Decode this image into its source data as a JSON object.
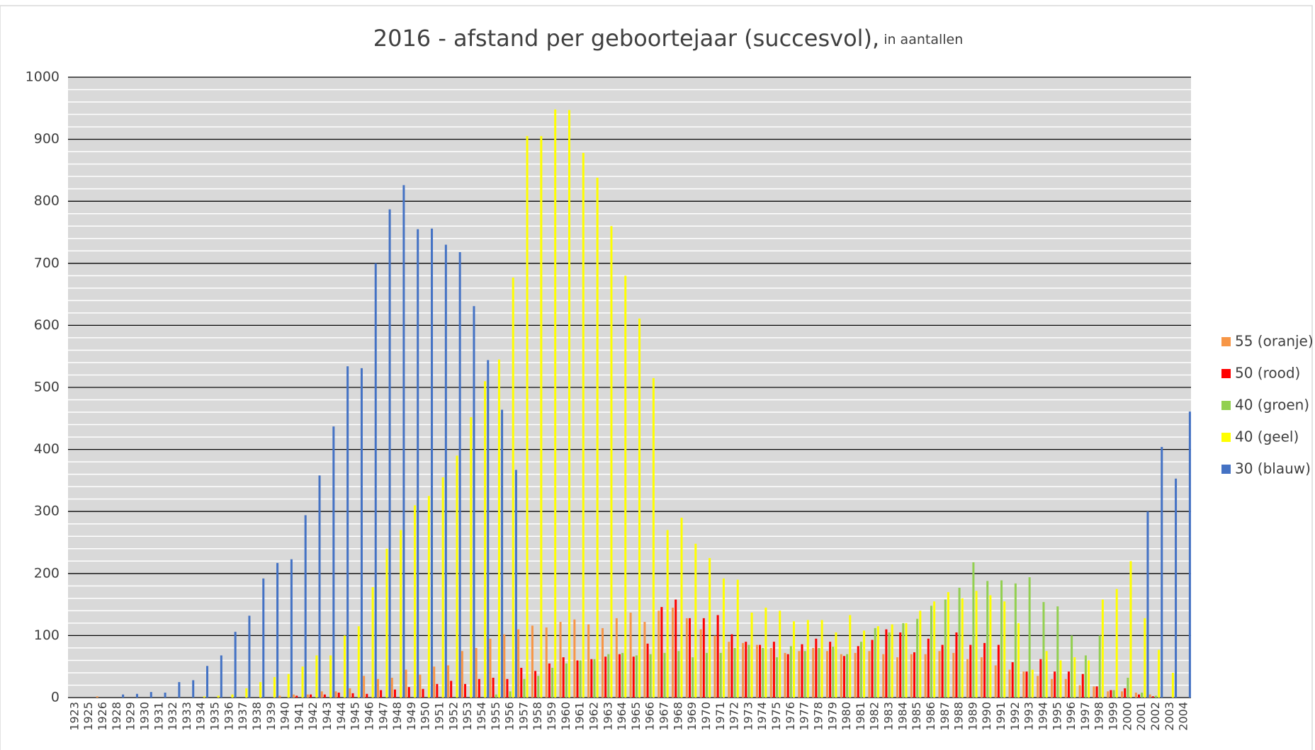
{
  "chart_data": {
    "type": "bar",
    "title": "2016 - afstand per geboortejaar (succesvol),",
    "subtitle": "in aantallen",
    "categories": [
      "1923",
      "1925",
      "1926",
      "1928",
      "1929",
      "1930",
      "1931",
      "1932",
      "1933",
      "1934",
      "1935",
      "1936",
      "1937",
      "1938",
      "1939",
      "1940",
      "1941",
      "1942",
      "1943",
      "1944",
      "1945",
      "1946",
      "1947",
      "1948",
      "1949",
      "1950",
      "1951",
      "1952",
      "1953",
      "1954",
      "1955",
      "1956",
      "1957",
      "1958",
      "1959",
      "1960",
      "1961",
      "1962",
      "1963",
      "1964",
      "1965",
      "1966",
      "1967",
      "1968",
      "1969",
      "1970",
      "1971",
      "1972",
      "1973",
      "1974",
      "1975",
      "1976",
      "1977",
      "1978",
      "1979",
      "1980",
      "1981",
      "1982",
      "1983",
      "1984",
      "1985",
      "1986",
      "1987",
      "1988",
      "1989",
      "1990",
      "1991",
      "1992",
      "1993",
      "1994",
      "1995",
      "1996",
      "1997",
      "1998",
      "1999",
      "2000",
      "2001",
      "2002",
      "2003",
      "2004"
    ],
    "series": [
      {
        "name": "55 (oranje)",
        "color": "#f79646",
        "values": [
          0,
          0,
          2,
          0,
          0,
          0,
          0,
          0,
          0,
          0,
          0,
          0,
          0,
          0,
          0,
          3,
          5,
          5,
          10,
          10,
          15,
          35,
          30,
          32,
          45,
          37,
          50,
          52,
          75,
          80,
          95,
          102,
          110,
          116,
          113,
          122,
          126,
          118,
          112,
          128,
          137,
          122,
          140,
          145,
          128,
          110,
          100,
          90,
          88,
          85,
          80,
          72,
          75,
          80,
          75,
          70,
          72,
          75,
          70,
          65,
          70,
          70,
          75,
          72,
          62,
          65,
          52,
          45,
          42,
          35,
          30,
          30,
          20,
          18,
          10,
          10,
          8,
          5,
          0,
          0
        ]
      },
      {
        "name": "50 (rood)",
        "color": "#ff0000",
        "values": [
          0,
          0,
          0,
          0,
          0,
          0,
          0,
          0,
          0,
          0,
          0,
          0,
          0,
          0,
          0,
          0,
          3,
          5,
          5,
          8,
          7,
          6,
          12,
          13,
          17,
          14,
          22,
          27,
          22,
          30,
          32,
          30,
          48,
          43,
          55,
          65,
          60,
          62,
          66,
          70,
          66,
          87,
          146,
          158,
          128,
          128,
          133,
          102,
          90,
          85,
          90,
          70,
          86,
          95,
          90,
          67,
          83,
          93,
          110,
          105,
          73,
          95,
          85,
          105,
          85,
          88,
          85,
          57,
          42,
          62,
          42,
          42,
          38,
          18,
          12,
          15,
          5,
          2,
          0,
          0
        ]
      },
      {
        "name": "40 (groen)",
        "color": "#92d050",
        "values": [
          0,
          0,
          0,
          0,
          0,
          0,
          0,
          0,
          0,
          0,
          0,
          0,
          0,
          0,
          0,
          0,
          0,
          0,
          0,
          0,
          0,
          0,
          0,
          0,
          0,
          0,
          0,
          0,
          0,
          0,
          5,
          10,
          30,
          35,
          48,
          55,
          60,
          62,
          70,
          72,
          68,
          70,
          72,
          75,
          65,
          72,
          72,
          80,
          85,
          80,
          65,
          83,
          75,
          80,
          82,
          70,
          90,
          112,
          105,
          120,
          127,
          148,
          158,
          177,
          218,
          188,
          189,
          184,
          194,
          154,
          147,
          100,
          68,
          100,
          12,
          32,
          8,
          3,
          0,
          0
        ]
      },
      {
        "name": "40 (geel)",
        "color": "#ffff00",
        "values": [
          0,
          0,
          0,
          0,
          0,
          0,
          0,
          0,
          0,
          2,
          3,
          5,
          15,
          25,
          33,
          38,
          50,
          68,
          68,
          100,
          115,
          178,
          240,
          270,
          310,
          325,
          355,
          390,
          452,
          510,
          545,
          677,
          905,
          905,
          948,
          947,
          878,
          838,
          760,
          680,
          611,
          515,
          270,
          290,
          248,
          225,
          192,
          190,
          137,
          145,
          140,
          123,
          125,
          125,
          105,
          133,
          108,
          115,
          118,
          120,
          140,
          155,
          170,
          160,
          172,
          165,
          155,
          120,
          45,
          75,
          60,
          65,
          60,
          158,
          175,
          220,
          128,
          77,
          40,
          0
        ]
      },
      {
        "name": "30 (blauw)",
        "color": "#4472c4",
        "values": [
          0,
          0,
          0,
          5,
          6,
          9,
          8,
          25,
          28,
          51,
          68,
          106,
          132,
          192,
          217,
          223,
          294,
          358,
          437,
          534,
          531,
          700,
          787,
          826,
          755,
          756,
          730,
          718,
          631,
          544,
          464,
          367,
          0,
          0,
          0,
          0,
          0,
          0,
          0,
          0,
          0,
          0,
          0,
          0,
          0,
          0,
          0,
          0,
          0,
          0,
          0,
          0,
          0,
          0,
          0,
          0,
          0,
          0,
          0,
          0,
          0,
          0,
          0,
          0,
          0,
          0,
          0,
          0,
          0,
          0,
          0,
          0,
          0,
          0,
          0,
          0,
          300,
          404,
          353,
          461
        ]
      }
    ],
    "ylim": [
      0,
      1000
    ],
    "yticks": [
      0,
      100,
      200,
      300,
      400,
      500,
      600,
      700,
      800,
      900,
      1000
    ],
    "grid": true,
    "minor_grid_step": 20,
    "legend": "right"
  }
}
